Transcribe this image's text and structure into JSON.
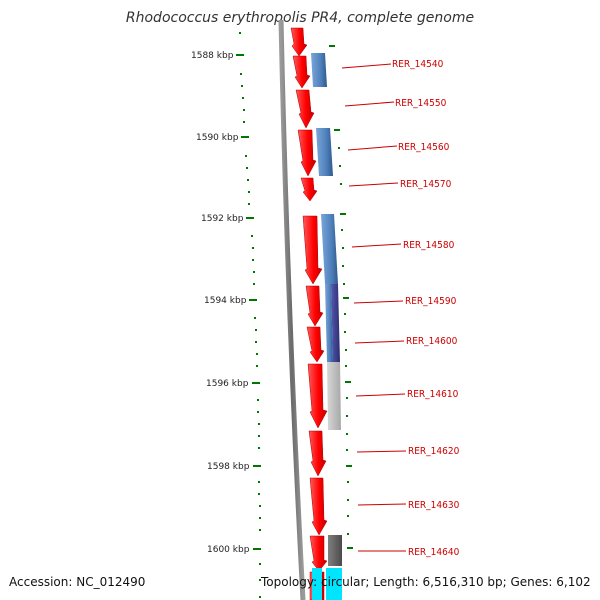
{
  "title": "Rhodococcus erythropolis PR4, complete genome",
  "accession": "Accession: NC_012490",
  "topology": "Topology: circular; Length: 6,516,310 bp; Genes: 6,102",
  "ticks": [
    "1588 kbp",
    "1590 kbp",
    "1592 kbp",
    "1594 kbp",
    "1596 kbp",
    "1598 kbp",
    "1600 kbp"
  ],
  "genes": [
    "RER_14540",
    "RER_14550",
    "RER_14560",
    "RER_14570",
    "RER_14580",
    "RER_14590",
    "RER_14600",
    "RER_14610",
    "RER_14620",
    "RER_14630",
    "RER_14640"
  ],
  "colors": {
    "cds_red": "#ff0000",
    "blue": "#4f81bd",
    "indigo": "#3b3d8f",
    "light_gray": "#bbbbbb",
    "dark_gray": "#666666",
    "cyan": "#00e5ff",
    "backbone": "#7a7a7a",
    "tick_green": "#007700",
    "label_red": "#cc0000"
  }
}
